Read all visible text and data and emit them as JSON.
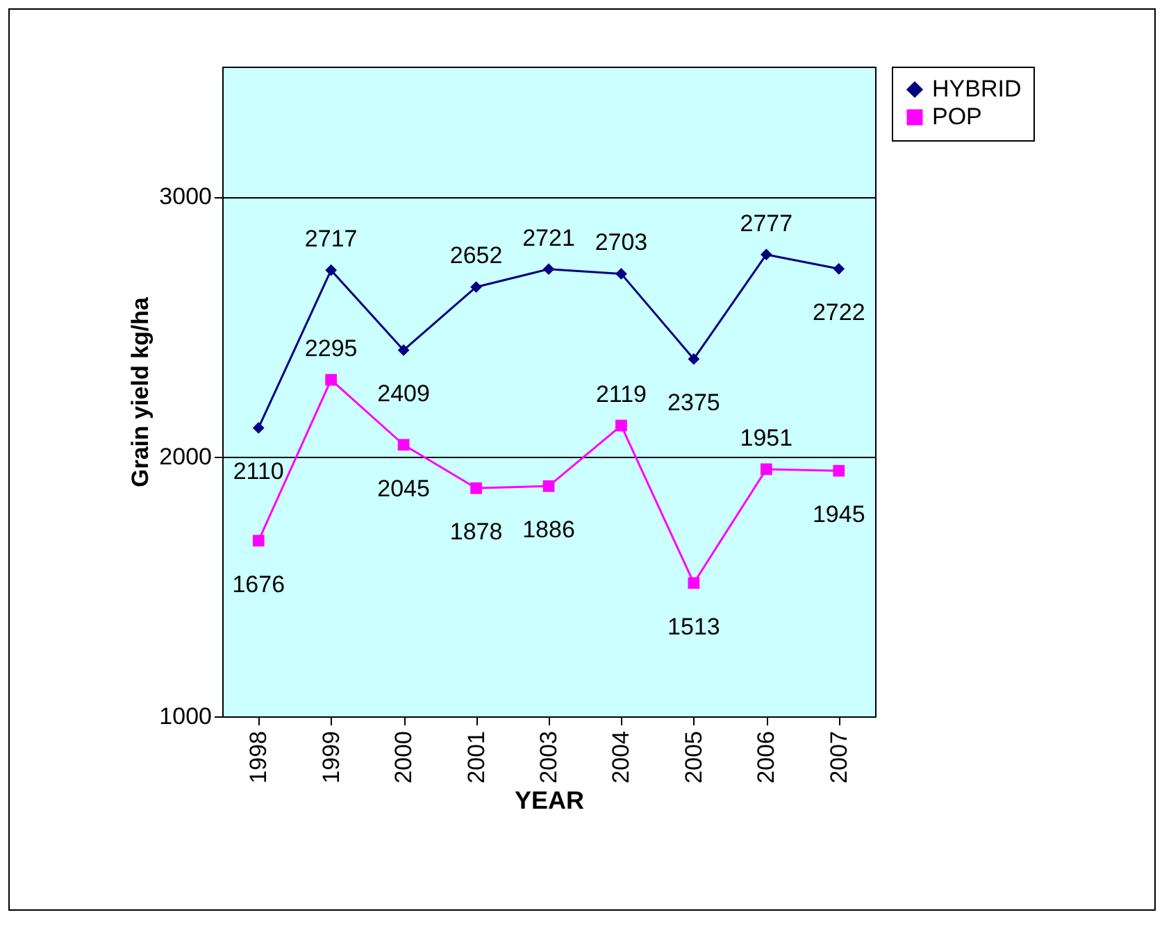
{
  "chart_data": {
    "type": "line",
    "xlabel": "YEAR",
    "ylabel": "Grain yield kg/ha",
    "categories": [
      "1998",
      "1999",
      "2000",
      "2001",
      "2003",
      "2004",
      "2005",
      "2006",
      "2007"
    ],
    "series": [
      {
        "name": "HYBRID",
        "color": "#000080",
        "marker": "diamond",
        "values": [
          2110,
          2717,
          2409,
          2652,
          2721,
          2703,
          2375,
          2777,
          2722
        ]
      },
      {
        "name": "POP",
        "color": "#ff00ff",
        "marker": "square",
        "values": [
          1676,
          2295,
          2045,
          1878,
          1886,
          2119,
          1513,
          1951,
          1945
        ]
      }
    ],
    "ylim": [
      1000,
      3500
    ],
    "yticks": [
      1000,
      2000,
      3000
    ],
    "grid": "y",
    "legend": "right",
    "data_labels": true
  }
}
